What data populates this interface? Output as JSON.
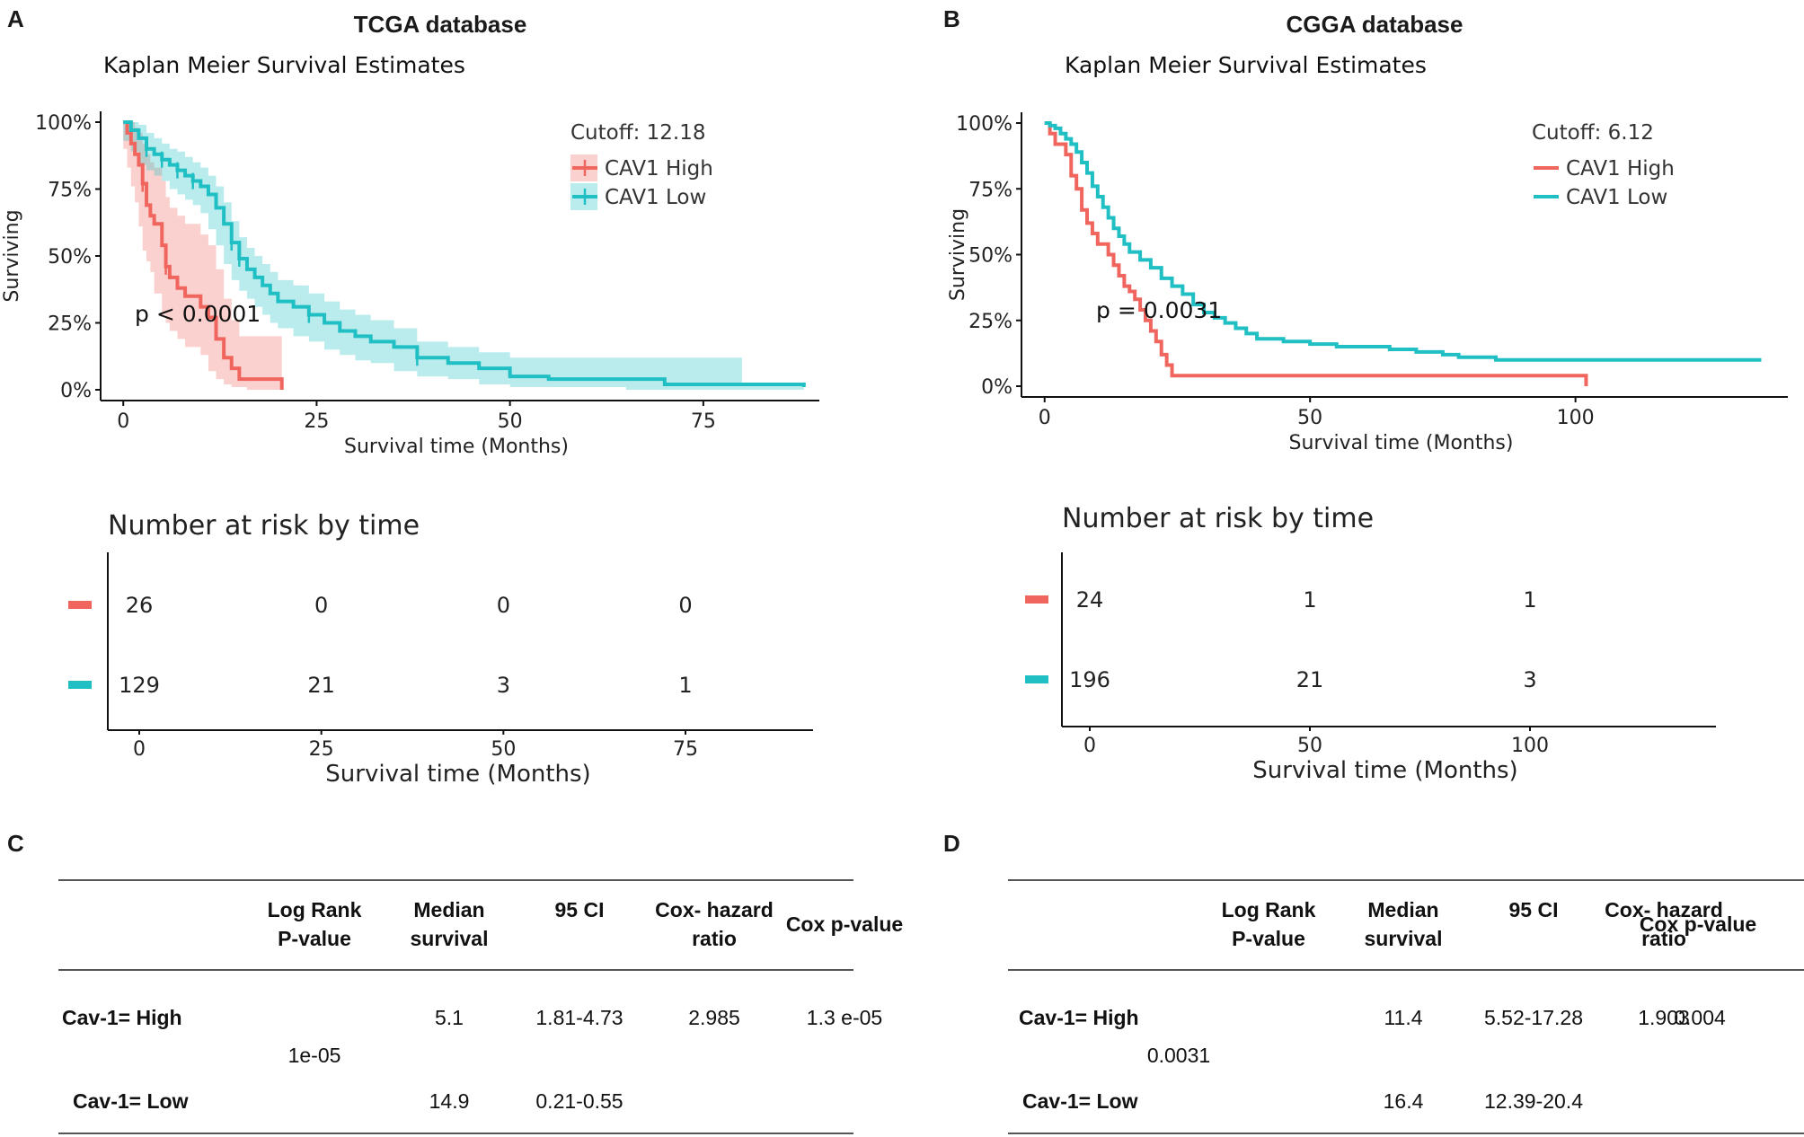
{
  "panels": {
    "A": {
      "letter": "A",
      "database_title": "TCGA database"
    },
    "B": {
      "letter": "B",
      "database_title": "CGGA database"
    },
    "C": {
      "letter": "C"
    },
    "D": {
      "letter": "D"
    }
  },
  "colors": {
    "high": "#f0665e",
    "low": "#1fbfc4",
    "axis": "#111111"
  },
  "chart_data": [
    {
      "id": "A-km",
      "type": "line",
      "title": "Kaplan Meier Survival Estimates",
      "xlabel": "Survival time (Months)",
      "ylabel": "Surviving",
      "xlim": [
        -2,
        90
      ],
      "ylim": [
        0,
        1
      ],
      "x_ticks": [
        0,
        25,
        50,
        75
      ],
      "y_ticks": [
        0,
        0.25,
        0.5,
        0.75,
        1.0
      ],
      "y_tick_labels": [
        "0%",
        "25%",
        "50%",
        "75%",
        "100%"
      ],
      "legend_title": "Cutoff: 12.18",
      "legend_position": "top-right",
      "annotation": "p < 0.0001",
      "confidence_bands": true,
      "series": [
        {
          "name": "CAV1 High",
          "color": "#f0665e",
          "x": [
            0,
            0.5,
            1,
            1.5,
            2,
            2.5,
            3,
            3.5,
            4,
            5,
            5.5,
            6,
            7,
            8,
            10,
            11,
            12,
            13,
            14,
            15,
            16,
            20.5
          ],
          "y": [
            1.0,
            0.96,
            0.92,
            0.88,
            0.84,
            0.77,
            0.69,
            0.65,
            0.62,
            0.54,
            0.46,
            0.42,
            0.38,
            0.35,
            0.31,
            0.27,
            0.19,
            0.12,
            0.08,
            0.04,
            0.04,
            0.0
          ],
          "band_upper": [
            1.0,
            1.0,
            1.0,
            0.98,
            0.96,
            0.92,
            0.88,
            0.85,
            0.83,
            0.78,
            0.72,
            0.68,
            0.65,
            0.62,
            0.58,
            0.54,
            0.45,
            0.34,
            0.26,
            0.2,
            0.2,
            0.2
          ],
          "band_lower": [
            1.0,
            0.9,
            0.83,
            0.76,
            0.7,
            0.61,
            0.52,
            0.48,
            0.44,
            0.36,
            0.28,
            0.25,
            0.22,
            0.19,
            0.16,
            0.13,
            0.07,
            0.04,
            0.02,
            0.01,
            0.01,
            0.0
          ]
        },
        {
          "name": "CAV1 Low",
          "color": "#1fbfc4",
          "x": [
            0,
            1,
            2,
            3,
            4,
            5,
            6,
            7,
            8,
            9,
            10,
            11,
            12,
            13,
            14,
            15,
            16,
            17,
            18,
            19,
            20,
            22,
            24,
            26,
            28,
            30,
            32,
            35,
            38,
            42,
            46,
            50,
            55,
            60,
            65,
            70,
            80,
            88
          ],
          "y": [
            1.0,
            0.97,
            0.94,
            0.9,
            0.88,
            0.86,
            0.84,
            0.82,
            0.8,
            0.78,
            0.76,
            0.73,
            0.68,
            0.62,
            0.55,
            0.49,
            0.45,
            0.42,
            0.39,
            0.36,
            0.33,
            0.31,
            0.28,
            0.25,
            0.22,
            0.2,
            0.18,
            0.16,
            0.12,
            0.1,
            0.08,
            0.05,
            0.04,
            0.04,
            0.04,
            0.02,
            0.02,
            0.01
          ],
          "band_upper": [
            1.0,
            1.0,
            0.99,
            0.96,
            0.94,
            0.92,
            0.9,
            0.89,
            0.87,
            0.85,
            0.83,
            0.8,
            0.76,
            0.7,
            0.63,
            0.57,
            0.53,
            0.5,
            0.47,
            0.44,
            0.41,
            0.39,
            0.36,
            0.33,
            0.3,
            0.28,
            0.26,
            0.23,
            0.18,
            0.16,
            0.14,
            0.12,
            0.12,
            0.12,
            0.12,
            0.12,
            0.02,
            0.01
          ],
          "band_lower": [
            1.0,
            0.93,
            0.89,
            0.84,
            0.82,
            0.8,
            0.78,
            0.75,
            0.73,
            0.71,
            0.69,
            0.66,
            0.6,
            0.54,
            0.47,
            0.41,
            0.37,
            0.34,
            0.31,
            0.28,
            0.25,
            0.23,
            0.2,
            0.18,
            0.15,
            0.13,
            0.11,
            0.1,
            0.07,
            0.05,
            0.04,
            0.02,
            0.01,
            0.01,
            0.01,
            0.0,
            0.0,
            0.0
          ]
        }
      ]
    },
    {
      "id": "B-km",
      "type": "line",
      "title": "Kaplan Meier Survival Estimates",
      "xlabel": "Survival time (Months)",
      "ylabel": "Surviving",
      "xlim": [
        -3,
        140
      ],
      "ylim": [
        0,
        1
      ],
      "x_ticks": [
        0,
        50,
        100
      ],
      "y_ticks": [
        0,
        0.25,
        0.5,
        0.75,
        1.0
      ],
      "y_tick_labels": [
        "0%",
        "25%",
        "50%",
        "75%",
        "100%"
      ],
      "legend_title": "Cutoff: 6.12",
      "legend_position": "top-right",
      "annotation": "p = 0.0031",
      "confidence_bands": false,
      "series": [
        {
          "name": "CAV1 High",
          "color": "#f0665e",
          "x": [
            0,
            1,
            2,
            4,
            5,
            6,
            7,
            8,
            9,
            10,
            12,
            13,
            14,
            15,
            16,
            17,
            18,
            19,
            20,
            21,
            22,
            23,
            24,
            102
          ],
          "y": [
            1.0,
            0.96,
            0.92,
            0.88,
            0.8,
            0.75,
            0.67,
            0.62,
            0.58,
            0.54,
            0.5,
            0.46,
            0.42,
            0.38,
            0.36,
            0.33,
            0.29,
            0.25,
            0.21,
            0.17,
            0.12,
            0.08,
            0.04,
            0.0
          ],
          "hold_last_until": 102
        },
        {
          "name": "CAV1 Low",
          "color": "#1fbfc4",
          "x": [
            0,
            1,
            2,
            3,
            4,
            5,
            6,
            7,
            8,
            9,
            10,
            11,
            12,
            13,
            14,
            15,
            16,
            18,
            20,
            22,
            24,
            26,
            28,
            30,
            32,
            34,
            36,
            38,
            40,
            45,
            50,
            55,
            60,
            65,
            70,
            75,
            78,
            85,
            100,
            120,
            135
          ],
          "y": [
            1.0,
            0.99,
            0.98,
            0.96,
            0.94,
            0.92,
            0.89,
            0.85,
            0.81,
            0.76,
            0.72,
            0.68,
            0.64,
            0.6,
            0.57,
            0.54,
            0.51,
            0.48,
            0.45,
            0.41,
            0.38,
            0.35,
            0.31,
            0.28,
            0.26,
            0.24,
            0.22,
            0.2,
            0.18,
            0.17,
            0.16,
            0.15,
            0.15,
            0.14,
            0.13,
            0.12,
            0.11,
            0.1,
            0.1,
            0.1,
            0.1
          ]
        }
      ]
    }
  ],
  "risk_tables": [
    {
      "id": "A-risk",
      "title": "Number at risk by time",
      "xlabel": "Survival time (Months)",
      "x_ticks": [
        0,
        25,
        50,
        75
      ],
      "xlim": [
        -2,
        90
      ],
      "rows": [
        {
          "group": "CAV1 High",
          "color": "#f0665e",
          "values": [
            "26",
            "0",
            "0",
            "0"
          ]
        },
        {
          "group": "CAV1 Low",
          "color": "#1fbfc4",
          "values": [
            "129",
            "21",
            "3",
            "1"
          ]
        }
      ]
    },
    {
      "id": "B-risk",
      "title": "Number at risk by time",
      "xlabel": "Survival time (Months)",
      "x_ticks": [
        0,
        50,
        100
      ],
      "xlim": [
        -3,
        140
      ],
      "rows": [
        {
          "group": "CAV1 High",
          "color": "#f0665e",
          "values": [
            "24",
            "1",
            "1"
          ]
        },
        {
          "group": "CAV1 Low",
          "color": "#1fbfc4",
          "values": [
            "196",
            "21",
            "3"
          ]
        }
      ]
    }
  ],
  "tables": {
    "C": {
      "headers": [
        [
          "Log Rank",
          "P-value"
        ],
        [
          "Median",
          "survival"
        ],
        [
          "95 CI"
        ],
        [
          "Cox- hazard",
          "ratio"
        ],
        [
          "Cox p-value"
        ]
      ],
      "high_label": "Cav-1= High",
      "low_label": "Cav-1= Low",
      "logrank_p": "1e-05",
      "high": {
        "median": "5.1",
        "ci": "1.81-4.73",
        "hr": "2.985",
        "cox_p": "1.3 e-05"
      },
      "low": {
        "median": "14.9",
        "ci": "0.21-0.55"
      }
    },
    "D": {
      "headers": [
        [
          "Log Rank",
          "P-value"
        ],
        [
          "Median",
          "survival"
        ],
        [
          "95 CI"
        ],
        [
          "Cox- hazard",
          "ratio"
        ],
        [
          "Cox p-value"
        ]
      ],
      "high_label": "Cav-1= High",
      "low_label": "Cav-1= Low",
      "logrank_p": "0.0031",
      "high": {
        "median": "11.4",
        "ci": "5.52-17.28",
        "hr": "1.903",
        "cox_p": "0.004"
      },
      "low": {
        "median": "16.4",
        "ci": "12.39-20.4"
      }
    }
  }
}
